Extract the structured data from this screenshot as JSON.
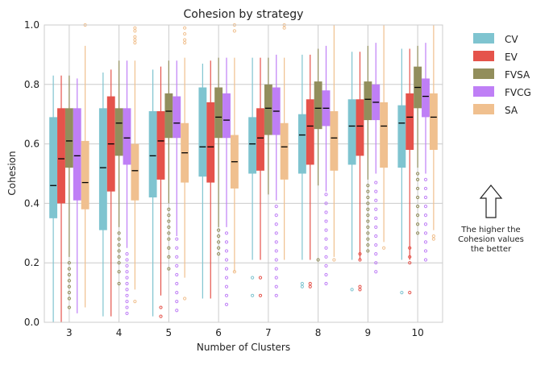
{
  "chart_data": {
    "type": "box",
    "title": "Cohesion by strategy",
    "xlabel": "Number of Clusters",
    "ylabel": "Cohesion",
    "ylim": [
      0,
      1
    ],
    "yticks": [
      "0.0",
      "0.2",
      "0.4",
      "0.6",
      "0.8",
      "1.0"
    ],
    "categories": [
      "3",
      "4",
      "5",
      "6",
      "7",
      "8",
      "9",
      "10"
    ],
    "grid": true,
    "legend_position": "right",
    "annotation": "The higher the\nCohesion values\nthe better",
    "series": [
      {
        "name": "CV",
        "color": "#7fc4d0",
        "boxes": [
          {
            "low": 0.0,
            "q1": 0.35,
            "median": 0.46,
            "q3": 0.69,
            "high": 0.83,
            "outliers": []
          },
          {
            "low": 0.02,
            "q1": 0.31,
            "median": 0.52,
            "q3": 0.72,
            "high": 0.84,
            "outliers": []
          },
          {
            "low": 0.02,
            "q1": 0.42,
            "median": 0.56,
            "q3": 0.71,
            "high": 0.85,
            "outliers": []
          },
          {
            "low": 0.08,
            "q1": 0.49,
            "median": 0.59,
            "q3": 0.79,
            "high": 0.87,
            "outliers": []
          },
          {
            "low": 0.21,
            "q1": 0.5,
            "median": 0.6,
            "q3": 0.69,
            "high": 0.89,
            "outliers": [
              0.09,
              0.15
            ]
          },
          {
            "low": 0.21,
            "q1": 0.5,
            "median": 0.63,
            "q3": 0.7,
            "high": 0.9,
            "outliers": [
              0.12,
              0.13
            ]
          },
          {
            "low": 0.21,
            "q1": 0.53,
            "median": 0.66,
            "q3": 0.75,
            "high": 0.91,
            "outliers": [
              0.11
            ]
          },
          {
            "low": 0.21,
            "q1": 0.52,
            "median": 0.67,
            "q3": 0.73,
            "high": 0.92,
            "outliers": [
              0.1
            ]
          }
        ]
      },
      {
        "name": "EV",
        "color": "#e5534b",
        "boxes": [
          {
            "low": 0.0,
            "q1": 0.4,
            "median": 0.55,
            "q3": 0.72,
            "high": 0.83,
            "outliers": []
          },
          {
            "low": 0.02,
            "q1": 0.44,
            "median": 0.6,
            "q3": 0.76,
            "high": 0.85,
            "outliers": []
          },
          {
            "low": 0.09,
            "q1": 0.48,
            "median": 0.61,
            "q3": 0.71,
            "high": 0.86,
            "outliers": [
              0.02,
              0.05
            ]
          },
          {
            "low": 0.08,
            "q1": 0.47,
            "median": 0.59,
            "q3": 0.74,
            "high": 0.88,
            "outliers": []
          },
          {
            "low": 0.21,
            "q1": 0.51,
            "median": 0.62,
            "q3": 0.72,
            "high": 0.89,
            "outliers": [
              0.09,
              0.15
            ]
          },
          {
            "low": 0.21,
            "q1": 0.53,
            "median": 0.66,
            "q3": 0.75,
            "high": 0.9,
            "outliers": [
              0.12,
              0.13
            ]
          },
          {
            "low": 0.21,
            "q1": 0.56,
            "median": 0.66,
            "q3": 0.75,
            "high": 0.91,
            "outliers": [
              0.11,
              0.12,
              0.21,
              0.23
            ]
          },
          {
            "low": 0.21,
            "q1": 0.58,
            "median": 0.69,
            "q3": 0.77,
            "high": 0.92,
            "outliers": [
              0.1,
              0.2,
              0.22,
              0.25
            ]
          }
        ]
      },
      {
        "name": "FVSA",
        "color": "#928e5c",
        "boxes": [
          {
            "low": 0.22,
            "q1": 0.52,
            "median": 0.61,
            "q3": 0.72,
            "high": 0.83,
            "outliers": [
              0.05,
              0.08,
              0.1,
              0.12,
              0.14,
              0.16,
              0.18,
              0.2
            ]
          },
          {
            "low": 0.32,
            "q1": 0.56,
            "median": 0.67,
            "q3": 0.72,
            "high": 0.88,
            "outliers": [
              0.13,
              0.17,
              0.2,
              0.22,
              0.24,
              0.26,
              0.28,
              0.3
            ]
          },
          {
            "low": 0.4,
            "q1": 0.62,
            "median": 0.71,
            "q3": 0.77,
            "high": 0.88,
            "outliers": [
              0.18,
              0.22,
              0.25,
              0.28,
              0.3,
              0.32,
              0.34,
              0.36,
              0.38
            ]
          },
          {
            "low": 0.32,
            "q1": 0.62,
            "median": 0.69,
            "q3": 0.79,
            "high": 0.89,
            "outliers": [
              0.23,
              0.25,
              0.27,
              0.29,
              0.31
            ]
          },
          {
            "low": 0.43,
            "q1": 0.63,
            "median": 0.72,
            "q3": 0.8,
            "high": 0.89,
            "outliers": []
          },
          {
            "low": 0.46,
            "q1": 0.65,
            "median": 0.72,
            "q3": 0.81,
            "high": 0.92,
            "outliers": [
              0.21
            ]
          },
          {
            "low": 0.48,
            "q1": 0.68,
            "median": 0.75,
            "q3": 0.81,
            "high": 0.93,
            "outliers": [
              0.24,
              0.26,
              0.28,
              0.3,
              0.32,
              0.34,
              0.36,
              0.38,
              0.4,
              0.42,
              0.44,
              0.46
            ]
          },
          {
            "low": 0.52,
            "q1": 0.72,
            "median": 0.79,
            "q3": 0.86,
            "high": 0.93,
            "outliers": [
              0.3,
              0.33,
              0.36,
              0.39,
              0.42,
              0.45,
              0.48,
              0.5
            ]
          }
        ]
      },
      {
        "name": "FVCG",
        "color": "#bf7ff6",
        "boxes": [
          {
            "low": 0.03,
            "q1": 0.41,
            "median": 0.56,
            "q3": 0.72,
            "high": 0.82,
            "outliers": []
          },
          {
            "low": 0.25,
            "q1": 0.53,
            "median": 0.62,
            "q3": 0.72,
            "high": 0.88,
            "outliers": [
              0.03,
              0.05,
              0.07,
              0.09,
              0.11,
              0.13,
              0.15,
              0.17,
              0.19,
              0.21,
              0.23
            ]
          },
          {
            "low": 0.29,
            "q1": 0.62,
            "median": 0.67,
            "q3": 0.76,
            "high": 0.88,
            "outliers": [
              0.04,
              0.07,
              0.1,
              0.13,
              0.16,
              0.19,
              0.22,
              0.25,
              0.28
            ]
          },
          {
            "low": 0.32,
            "q1": 0.62,
            "median": 0.68,
            "q3": 0.77,
            "high": 0.89,
            "outliers": [
              0.06,
              0.09,
              0.12,
              0.15,
              0.18,
              0.21,
              0.24,
              0.27,
              0.3
            ]
          },
          {
            "low": 0.41,
            "q1": 0.63,
            "median": 0.71,
            "q3": 0.79,
            "high": 0.9,
            "outliers": [
              0.09,
              0.12,
              0.15,
              0.18,
              0.21,
              0.24,
              0.27,
              0.3,
              0.33,
              0.36,
              0.39
            ]
          },
          {
            "low": 0.44,
            "q1": 0.66,
            "median": 0.72,
            "q3": 0.78,
            "high": 0.93,
            "outliers": [
              0.13,
              0.16,
              0.19,
              0.22,
              0.25,
              0.28,
              0.31,
              0.34,
              0.37,
              0.4,
              0.43
            ]
          },
          {
            "low": 0.5,
            "q1": 0.68,
            "median": 0.74,
            "q3": 0.8,
            "high": 0.94,
            "outliers": [
              0.17,
              0.2,
              0.23,
              0.26,
              0.29,
              0.32,
              0.35,
              0.38,
              0.41,
              0.44,
              0.47
            ]
          },
          {
            "low": 0.5,
            "q1": 0.69,
            "median": 0.76,
            "q3": 0.82,
            "high": 0.94,
            "outliers": [
              0.21,
              0.24,
              0.27,
              0.3,
              0.33,
              0.36,
              0.39,
              0.42,
              0.45,
              0.48
            ]
          }
        ]
      },
      {
        "name": "SA",
        "color": "#f0c08f",
        "boxes": [
          {
            "low": 0.05,
            "q1": 0.38,
            "median": 0.47,
            "q3": 0.61,
            "high": 0.93,
            "outliers": [
              1.0
            ]
          },
          {
            "low": 0.11,
            "q1": 0.41,
            "median": 0.51,
            "q3": 0.6,
            "high": 0.88,
            "outliers": [
              0.07,
              0.94,
              0.95,
              0.96,
              0.98,
              0.99
            ]
          },
          {
            "low": 0.15,
            "q1": 0.47,
            "median": 0.57,
            "q3": 0.67,
            "high": 0.89,
            "outliers": [
              0.08,
              0.94,
              0.95,
              0.97,
              0.99
            ]
          },
          {
            "low": 0.17,
            "q1": 0.45,
            "median": 0.54,
            "q3": 0.63,
            "high": 0.89,
            "outliers": [
              0.17,
              0.98,
              1.0
            ]
          },
          {
            "low": 0.21,
            "q1": 0.48,
            "median": 0.59,
            "q3": 0.67,
            "high": 0.89,
            "outliers": [
              0.99,
              1.0
            ]
          },
          {
            "low": 0.22,
            "q1": 0.51,
            "median": 0.62,
            "q3": 0.71,
            "high": 1.0,
            "outliers": [
              0.21
            ]
          },
          {
            "low": 0.27,
            "q1": 0.52,
            "median": 0.66,
            "q3": 0.74,
            "high": 1.0,
            "outliers": [
              0.25
            ]
          },
          {
            "low": 0.31,
            "q1": 0.58,
            "median": 0.69,
            "q3": 0.77,
            "high": 1.0,
            "outliers": [
              0.28,
              0.29
            ]
          }
        ]
      }
    ]
  }
}
